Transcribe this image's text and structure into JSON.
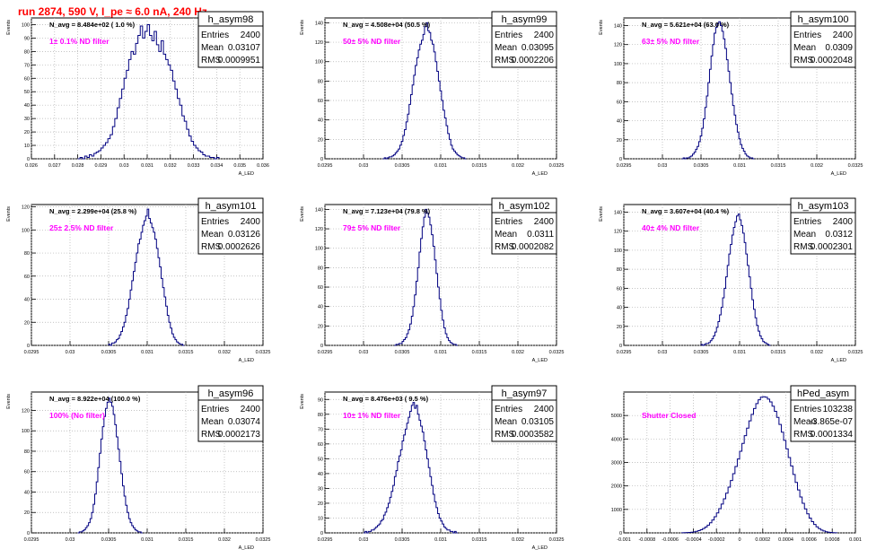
{
  "page_title": "run 2874,   590 V, I_pe ≈ 6.0 nA, 240 Hz",
  "colors": {
    "title": "#ff0000",
    "filter_label": "#ff00ff",
    "hist_line": "#000080",
    "grid": "#b0b0b0"
  },
  "chart_data": [
    {
      "type": "histogram",
      "title": "h_asym98",
      "stats": {
        "Entries": "2400",
        "Mean": "0.03107",
        "RMS": "0.0009951"
      },
      "annotation": "N_avg = 8.484e+02 ( 1.0 %)",
      "filter_label": "1± 0.1% ND filter",
      "xlabel": "A_LED",
      "ylabel": "Events",
      "xlim": [
        0.026,
        0.036
      ],
      "ylim": [
        0,
        105
      ],
      "xticks": [
        "0.026",
        "0.027",
        "0.028",
        "0.029",
        "0.03",
        "0.031",
        "0.032",
        "0.033",
        "0.034",
        "0.035",
        "0.036"
      ],
      "xtick_values": [
        0.026,
        0.027,
        0.028,
        0.029,
        0.03,
        0.031,
        0.032,
        0.033,
        0.034,
        0.035,
        0.036
      ],
      "yticks": [
        "0",
        "10",
        "20",
        "30",
        "40",
        "50",
        "60",
        "70",
        "80",
        "90",
        "100"
      ],
      "ytick_values": [
        0,
        10,
        20,
        30,
        40,
        50,
        60,
        70,
        80,
        90,
        100
      ],
      "bins_start": 0.028,
      "bin_width": 0.0001,
      "counts": [
        0,
        1,
        0,
        2,
        1,
        3,
        2,
        4,
        5,
        6,
        8,
        10,
        12,
        15,
        18,
        24,
        30,
        38,
        45,
        52,
        60,
        66,
        74,
        80,
        78,
        86,
        92,
        99,
        90,
        95,
        100,
        92,
        88,
        95,
        85,
        80,
        88,
        78,
        74,
        70,
        66,
        58,
        52,
        45,
        40,
        32,
        28,
        22,
        17,
        13,
        10,
        8,
        6,
        5,
        3,
        2,
        2,
        1,
        1,
        0,
        1
      ]
    },
    {
      "type": "histogram",
      "title": "h_asym99",
      "stats": {
        "Entries": "2400",
        "Mean": "0.03095",
        "RMS": "0.0002206"
      },
      "annotation": "N_avg = 4.508e+04 (50.5 %)",
      "filter_label": "50± 5% ND filter",
      "xlabel": "A_LED",
      "ylabel": "Events",
      "xlim": [
        0.0295,
        0.0325
      ],
      "ylim": [
        0,
        145
      ],
      "xticks": [
        "0.0295",
        "0.03",
        "0.0305",
        "0.031",
        "0.0315",
        "0.032",
        "0.0325"
      ],
      "xtick_values": [
        0.0295,
        0.03,
        0.0305,
        0.031,
        0.0315,
        0.032,
        0.0325
      ],
      "yticks": [
        "0",
        "20",
        "40",
        "60",
        "80",
        "100",
        "120",
        "140"
      ],
      "ytick_values": [
        0,
        20,
        40,
        60,
        80,
        100,
        120,
        140
      ],
      "bins_start": 0.03025,
      "bin_width": 2e-05,
      "counts": [
        0,
        1,
        0,
        1,
        2,
        2,
        3,
        4,
        6,
        8,
        10,
        14,
        18,
        24,
        30,
        38,
        46,
        56,
        66,
        76,
        86,
        96,
        104,
        112,
        118,
        122,
        128,
        136,
        140,
        132,
        130,
        122,
        118,
        110,
        100,
        90,
        80,
        70,
        60,
        50,
        42,
        34,
        26,
        20,
        14,
        10,
        8,
        6,
        4,
        3,
        2,
        1,
        1,
        0
      ]
    },
    {
      "type": "histogram",
      "title": "h_asym100",
      "stats": {
        "Entries": "2400",
        "Mean": "0.0309",
        "RMS": "0.0002048"
      },
      "annotation": "N_avg = 5.621e+04 (63.0 %)",
      "filter_label": "63± 5% ND filter",
      "xlabel": "A_LED",
      "ylabel": "Events",
      "xlim": [
        0.0295,
        0.0325
      ],
      "ylim": [
        0,
        148
      ],
      "xticks": [
        "0.0295",
        "0.03",
        "0.0305",
        "0.031",
        "0.0315",
        "0.032",
        "0.0325"
      ],
      "xtick_values": [
        0.0295,
        0.03,
        0.0305,
        0.031,
        0.0315,
        0.032,
        0.0325
      ],
      "yticks": [
        "0",
        "20",
        "40",
        "60",
        "80",
        "100",
        "120",
        "140"
      ],
      "ytick_values": [
        0,
        20,
        40,
        60,
        80,
        100,
        120,
        140
      ],
      "bins_start": 0.03025,
      "bin_width": 2e-05,
      "counts": [
        0,
        1,
        0,
        1,
        1,
        2,
        3,
        5,
        7,
        10,
        13,
        18,
        24,
        32,
        42,
        54,
        66,
        80,
        94,
        108,
        120,
        132,
        138,
        142,
        144,
        140,
        134,
        126,
        116,
        104,
        92,
        80,
        68,
        56,
        46,
        36,
        28,
        21,
        15,
        11,
        8,
        5,
        3,
        2,
        1,
        1,
        0
      ]
    },
    {
      "type": "histogram",
      "title": "h_asym101",
      "stats": {
        "Entries": "2400",
        "Mean": "0.03126",
        "RMS": "0.0002626"
      },
      "annotation": "N_avg = 2.299e+04 (25.8 %)",
      "filter_label": "25± 2.5% ND filter",
      "xlabel": "A_LED",
      "ylabel": "Events",
      "xlim": [
        0.0295,
        0.0325
      ],
      "ylim": [
        0,
        122
      ],
      "xticks": [
        "0.0295",
        "0.03",
        "0.0305",
        "0.031",
        "0.0315",
        "0.032",
        "0.0325"
      ],
      "xtick_values": [
        0.0295,
        0.03,
        0.0305,
        0.031,
        0.0315,
        0.032,
        0.0325
      ],
      "yticks": [
        "0",
        "20",
        "40",
        "60",
        "80",
        "100",
        "120"
      ],
      "ytick_values": [
        0,
        20,
        40,
        60,
        80,
        100,
        120
      ],
      "bins_start": 0.0305,
      "bin_width": 2e-05,
      "counts": [
        1,
        0,
        2,
        2,
        3,
        5,
        6,
        9,
        12,
        16,
        20,
        26,
        32,
        40,
        48,
        56,
        64,
        72,
        80,
        88,
        92,
        98,
        104,
        108,
        112,
        118,
        110,
        106,
        102,
        98,
        92,
        84,
        76,
        68,
        58,
        50,
        42,
        34,
        26,
        20,
        15,
        10,
        7,
        5,
        3,
        2,
        1,
        1,
        0
      ]
    },
    {
      "type": "histogram",
      "title": "h_asym102",
      "stats": {
        "Entries": "2400",
        "Mean": "0.0311",
        "RMS": "0.0002082"
      },
      "annotation": "N_avg = 7.123e+04 (79.8 %)",
      "filter_label": "79± 5% ND filter",
      "xlabel": "A_LED",
      "ylabel": "Events",
      "xlim": [
        0.0295,
        0.0325
      ],
      "ylim": [
        0,
        145
      ],
      "xticks": [
        "0.0295",
        "0.03",
        "0.0305",
        "0.031",
        "0.0315",
        "0.032",
        "0.0325"
      ],
      "xtick_values": [
        0.0295,
        0.03,
        0.0305,
        0.031,
        0.0315,
        0.032,
        0.0325
      ],
      "yticks": [
        "0",
        "20",
        "40",
        "60",
        "80",
        "100",
        "120",
        "140"
      ],
      "ytick_values": [
        0,
        20,
        40,
        60,
        80,
        100,
        120,
        140
      ],
      "bins_start": 0.0304,
      "bin_width": 2e-05,
      "counts": [
        0,
        1,
        1,
        2,
        2,
        4,
        6,
        8,
        12,
        16,
        22,
        30,
        40,
        52,
        66,
        80,
        96,
        110,
        122,
        132,
        140,
        136,
        132,
        124,
        114,
        102,
        88,
        74,
        60,
        48,
        36,
        26,
        18,
        12,
        8,
        5,
        3,
        2,
        1,
        1,
        0
      ]
    },
    {
      "type": "histogram",
      "title": "h_asym103",
      "stats": {
        "Entries": "2400",
        "Mean": "0.0312",
        "RMS": "0.0002301"
      },
      "annotation": "N_avg = 3.607e+04 (40.4 %)",
      "filter_label": "40± 4% ND filter",
      "xlabel": "A_LED",
      "ylabel": "Events",
      "xlim": [
        0.0295,
        0.0325
      ],
      "ylim": [
        0,
        148
      ],
      "xticks": [
        "0.0295",
        "0.03",
        "0.0305",
        "0.031",
        "0.0315",
        "0.032",
        "0.0325"
      ],
      "xtick_values": [
        0.0295,
        0.03,
        0.0305,
        0.031,
        0.0315,
        0.032,
        0.0325
      ],
      "yticks": [
        "0",
        "20",
        "40",
        "60",
        "80",
        "100",
        "120",
        "140"
      ],
      "ytick_values": [
        0,
        20,
        40,
        60,
        80,
        100,
        120,
        140
      ],
      "bins_start": 0.0305,
      "bin_width": 2e-05,
      "counts": [
        1,
        0,
        1,
        2,
        2,
        3,
        5,
        7,
        10,
        14,
        19,
        25,
        32,
        40,
        50,
        60,
        72,
        84,
        96,
        106,
        116,
        124,
        130,
        136,
        138,
        132,
        126,
        118,
        108,
        96,
        84,
        72,
        60,
        48,
        38,
        29,
        21,
        15,
        10,
        7,
        4,
        3,
        2,
        1,
        0
      ]
    },
    {
      "type": "histogram",
      "title": "h_asym96",
      "stats": {
        "Entries": "2400",
        "Mean": "0.03074",
        "RMS": "0.0002173"
      },
      "annotation": "N_avg = 8.922e+04 (100.0 %)",
      "filter_label": "100% (No filter)",
      "xlabel": "A_LED",
      "ylabel": "Events",
      "xlim": [
        0.0295,
        0.0325
      ],
      "ylim": [
        0,
        138
      ],
      "xticks": [
        "0.0295",
        "0.03",
        "0.0305",
        "0.031",
        "0.0315",
        "0.032",
        "0.0325"
      ],
      "xtick_values": [
        0.0295,
        0.03,
        0.0305,
        0.031,
        0.0315,
        0.032,
        0.0325
      ],
      "yticks": [
        "0",
        "20",
        "40",
        "60",
        "80",
        "100",
        "120"
      ],
      "ytick_values": [
        0,
        20,
        40,
        60,
        80,
        100,
        120
      ],
      "bins_start": 0.0301,
      "bin_width": 2e-05,
      "counts": [
        0,
        1,
        1,
        2,
        3,
        5,
        7,
        10,
        14,
        20,
        28,
        38,
        50,
        64,
        78,
        92,
        104,
        114,
        122,
        128,
        132,
        128,
        124,
        116,
        106,
        94,
        82,
        70,
        58,
        46,
        36,
        27,
        20,
        14,
        10,
        7,
        5,
        3,
        2,
        1,
        1,
        0
      ]
    },
    {
      "type": "histogram",
      "title": "h_asym97",
      "stats": {
        "Entries": "2400",
        "Mean": "0.03105",
        "RMS": "0.0003582"
      },
      "annotation": "N_avg = 8.476e+03 ( 9.5 %)",
      "filter_label": "10± 1% ND filter",
      "xlabel": "A_LED",
      "ylabel": "Events",
      "xlim": [
        0.0295,
        0.0325
      ],
      "ylim": [
        0,
        95
      ],
      "xticks": [
        "0.0295",
        "0.03",
        "0.0305",
        "0.031",
        "0.0315",
        "0.032",
        "0.0325"
      ],
      "xtick_values": [
        0.0295,
        0.03,
        0.0305,
        0.031,
        0.0315,
        0.032,
        0.0325
      ],
      "yticks": [
        "0",
        "10",
        "20",
        "30",
        "40",
        "50",
        "60",
        "70",
        "80",
        "90"
      ],
      "ytick_values": [
        0,
        10,
        20,
        30,
        40,
        50,
        60,
        70,
        80,
        90
      ],
      "bins_start": 0.03,
      "bin_width": 2e-05,
      "counts": [
        0,
        1,
        0,
        1,
        1,
        2,
        2,
        3,
        4,
        5,
        6,
        8,
        9,
        12,
        14,
        17,
        20,
        24,
        28,
        32,
        38,
        42,
        48,
        52,
        56,
        62,
        66,
        70,
        74,
        78,
        82,
        86,
        88,
        84,
        86,
        80,
        76,
        72,
        68,
        62,
        56,
        50,
        44,
        38,
        32,
        26,
        21,
        17,
        13,
        10,
        8,
        6,
        4,
        3,
        2,
        2,
        1,
        1,
        0,
        1,
        0
      ]
    },
    {
      "type": "histogram",
      "title": "hPed_asym",
      "stats": {
        "Entries": "103238",
        "Mean": "-3.865e-07",
        "RMS": "0.0001334"
      },
      "annotation": "",
      "filter_label": "Shutter Closed",
      "xlabel": "",
      "ylabel": "",
      "xlim": [
        -0.001,
        0.001
      ],
      "ylim": [
        0,
        6000
      ],
      "xticks": [
        "-0.001",
        "-0.0008",
        "-0.0006",
        "-0.0004",
        "-0.0002",
        "0",
        "0.0002",
        "0.0004",
        "0.0006",
        "0.0008",
        "0.001"
      ],
      "xtick_values": [
        -0.001,
        -0.0008,
        -0.0006,
        -0.0004,
        -0.0002,
        0,
        0.0002,
        0.0004,
        0.0006,
        0.0008,
        0.001
      ],
      "yticks": [
        "0",
        "1000",
        "2000",
        "3000",
        "4000",
        "5000"
      ],
      "ytick_values": [
        0,
        1000,
        2000,
        3000,
        4000,
        5000
      ],
      "bins_start": -0.0005,
      "bin_width": 2e-05,
      "counts": [
        5,
        8,
        12,
        20,
        30,
        45,
        65,
        95,
        135,
        185,
        250,
        330,
        430,
        550,
        690,
        850,
        1030,
        1230,
        1450,
        1690,
        1950,
        2230,
        2520,
        2830,
        3150,
        3480,
        3810,
        4140,
        4460,
        4770,
        5050,
        5300,
        5510,
        5670,
        5780,
        5800,
        5780,
        5700,
        5580,
        5400,
        5180,
        4920,
        4620,
        4290,
        3940,
        3580,
        3210,
        2850,
        2490,
        2150,
        1830,
        1530,
        1260,
        1020,
        810,
        630,
        480,
        360,
        260,
        180,
        120,
        80,
        50,
        30,
        18,
        10,
        5
      ]
    }
  ]
}
